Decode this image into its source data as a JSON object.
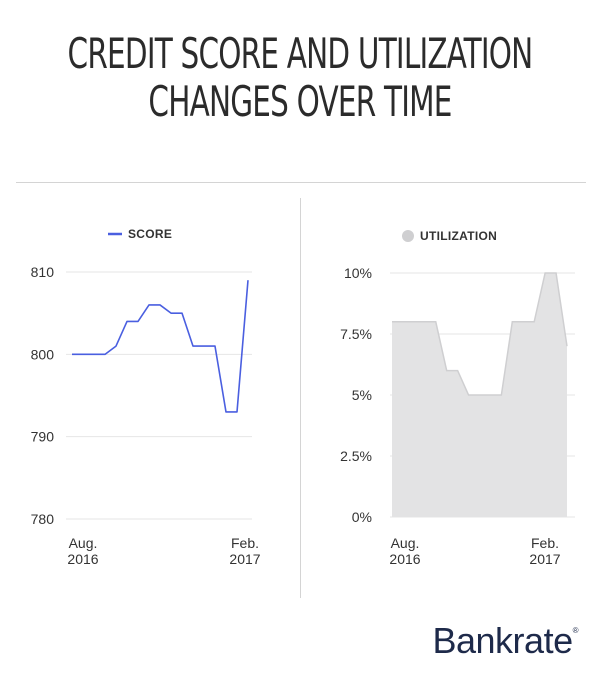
{
  "title": {
    "line1": "CREDIT SCORE AND UTILIZATION",
    "line2": "CHANGES OVER TIME"
  },
  "brand": {
    "name": "Bankrate",
    "mark": "®"
  },
  "colors": {
    "score_line": "#4a5fe0",
    "utilization_fill": "#e3e3e4",
    "utilization_stroke": "#cfcfd1",
    "grid": "#e6e6e6",
    "brand": "#1e2a4a"
  },
  "chart_data": [
    {
      "type": "line",
      "title": "",
      "legend": "SCORE",
      "legend_position": "top",
      "xlabel": "",
      "ylabel": "",
      "grid": true,
      "ylim": [
        780,
        810
      ],
      "yticks": [
        "810",
        "800",
        "790",
        "780"
      ],
      "xtick_labels": [
        [
          "Aug.",
          "2016"
        ],
        [
          "Feb.",
          "2017"
        ]
      ],
      "series": [
        {
          "name": "SCORE",
          "values": [
            800,
            800,
            800,
            800,
            801,
            804,
            804,
            806,
            806,
            805,
            805,
            801,
            801,
            801,
            793,
            793,
            809
          ]
        }
      ]
    },
    {
      "type": "area",
      "title": "",
      "legend": "UTILIZATION",
      "legend_position": "top",
      "xlabel": "",
      "ylabel": "",
      "grid": true,
      "ylim": [
        0,
        10
      ],
      "yticks": [
        "10%",
        "7.5%",
        "5%",
        "2.5%",
        "0%"
      ],
      "xtick_labels": [
        [
          "Aug.",
          "2016"
        ],
        [
          "Feb.",
          "2017"
        ]
      ],
      "series": [
        {
          "name": "UTILIZATION",
          "values": [
            8,
            8,
            8,
            8,
            8,
            6,
            6,
            5,
            5,
            5,
            5,
            8,
            8,
            8,
            10,
            10,
            7
          ]
        }
      ]
    }
  ]
}
